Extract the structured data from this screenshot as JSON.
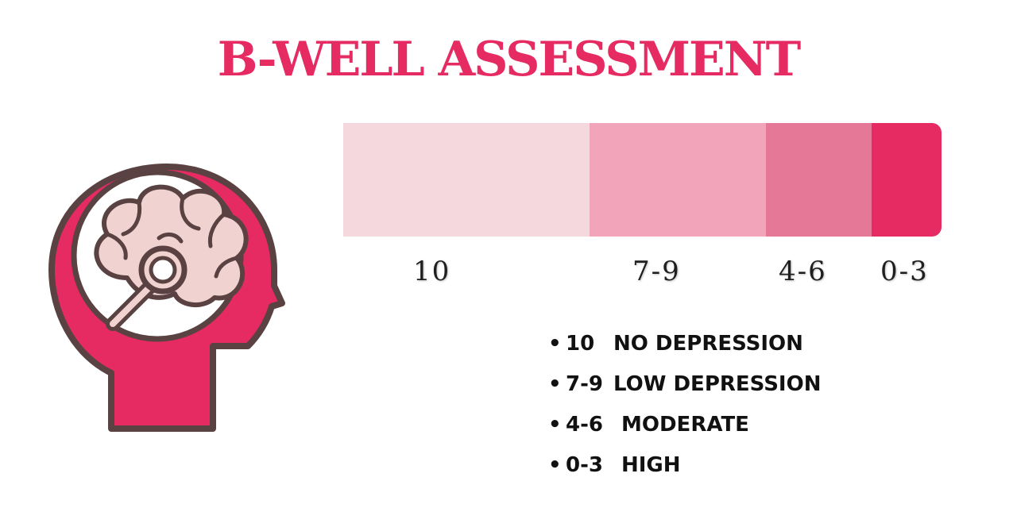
{
  "title": "B-WELL ASSESSMENT",
  "colors": {
    "title": "#e52b62",
    "accent": "#e52b62",
    "outline": "#5a4242",
    "brain": "#f0d2d0"
  },
  "icon": "head-brain-magnifier-icon",
  "scale": {
    "segments": [
      {
        "label": "10",
        "color": "#f5d7de"
      },
      {
        "label": "7-9",
        "color": "#f2a4bb"
      },
      {
        "label": "4-6",
        "color": "#e57896"
      },
      {
        "label": "0-3",
        "color": "#e52b62"
      }
    ]
  },
  "legend": [
    {
      "range": "10",
      "description": "NO DEPRESSION"
    },
    {
      "range": "7-9",
      "description": "LOW DEPRESSION"
    },
    {
      "range": "4-6",
      "description": "MODERATE"
    },
    {
      "range": "0-3",
      "description": "HIGH"
    }
  ]
}
